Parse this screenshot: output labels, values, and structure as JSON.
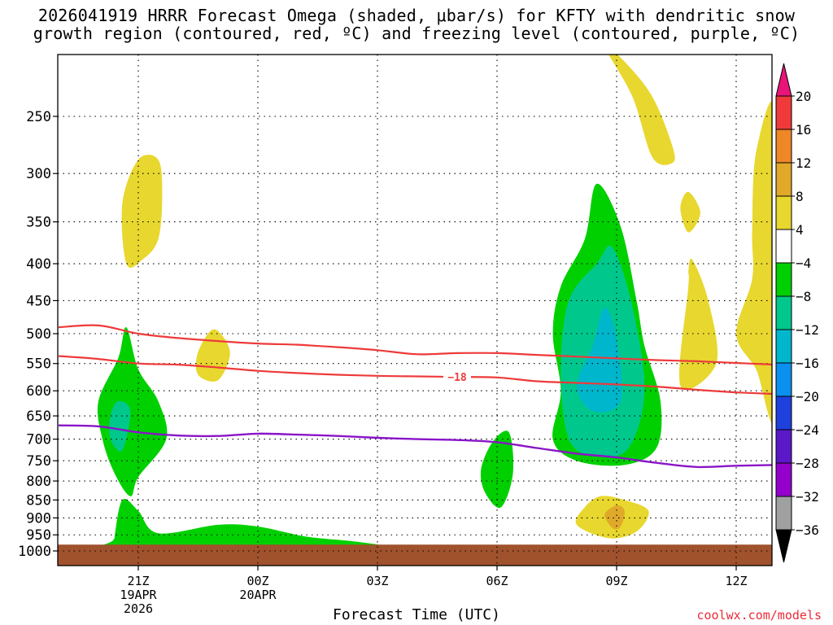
{
  "title": {
    "line1": "2026041919 HRRR Forecast Omega (shaded, μbar/s) for KFTY with dendritic snow",
    "line2": "growth region (contoured, red, ºC) and freezing level (contoured, purple, ºC)"
  },
  "source": "coolwx.com/models",
  "chart_data": {
    "type": "contour",
    "title": "2026041919 HRRR Forecast Omega (shaded, μbar/s) for KFTY with dendritic snow growth region (contoured, red, ºC) and freezing level (contoured, purple, ºC)",
    "xlabel": "Forecast Time (UTC)",
    "ylabel": "",
    "x_range_hours": [
      19,
      37
    ],
    "y_range_hpa": [
      1000,
      200
    ],
    "y_scale": "log",
    "grid": true,
    "x_ticks": [
      {
        "hour": 21,
        "label": "21Z",
        "sub1": "19APR",
        "sub2": "2026"
      },
      {
        "hour": 24,
        "label": "00Z",
        "sub1": "20APR",
        "sub2": ""
      },
      {
        "hour": 27,
        "label": "03Z",
        "sub1": "",
        "sub2": ""
      },
      {
        "hour": 30,
        "label": "06Z",
        "sub1": "",
        "sub2": ""
      },
      {
        "hour": 33,
        "label": "09Z",
        "sub1": "",
        "sub2": ""
      },
      {
        "hour": 36,
        "label": "12Z",
        "sub1": "",
        "sub2": ""
      }
    ],
    "y_ticks": [
      250,
      300,
      350,
      400,
      450,
      500,
      550,
      600,
      650,
      700,
      750,
      800,
      850,
      900,
      950,
      1000
    ],
    "colorbar": {
      "labels": [
        "20",
        "16",
        "12",
        "8",
        "4",
        "−4",
        "−8",
        "−12",
        "−16",
        "−20",
        "−24",
        "−28",
        "−32",
        "−36"
      ],
      "colors": [
        "#e8147a",
        "#f0393a",
        "#ef8727",
        "#e0a92a",
        "#e8d72e",
        "#ffffff",
        "#00d000",
        "#00c88c",
        "#00b6cc",
        "#0a90ee",
        "#1e40dd",
        "#5a18c8",
        "#9400cc",
        "#a0a0a0",
        "#000000"
      ]
    },
    "omega_regions": [
      {
        "band": "4 to 8",
        "color": "#e8d72e",
        "points": [
          [
            20.7,
            400
          ],
          [
            20.6,
            330
          ],
          [
            21.0,
            287
          ],
          [
            21.5,
            287
          ],
          [
            21.6,
            320
          ],
          [
            21.5,
            370
          ],
          [
            21.1,
            395
          ]
        ]
      },
      {
        "band": "4 to 8",
        "color": "#e8d72e",
        "points": [
          [
            22.5,
            570
          ],
          [
            22.5,
            530
          ],
          [
            22.9,
            493
          ],
          [
            23.3,
            530
          ],
          [
            23.0,
            580
          ]
        ]
      },
      {
        "band": "4 to 8",
        "color": "#e8d72e",
        "points": [
          [
            32.7,
            200
          ],
          [
            33.2,
            210
          ],
          [
            33.9,
            235
          ],
          [
            34.4,
            275
          ],
          [
            34.4,
            290
          ],
          [
            33.9,
            285
          ],
          [
            33.4,
            235
          ]
        ]
      },
      {
        "band": "4 to 8",
        "color": "#e8d72e",
        "points": [
          [
            34.6,
            335
          ],
          [
            34.8,
            318
          ],
          [
            35.1,
            340
          ],
          [
            34.8,
            362
          ]
        ]
      },
      {
        "band": "4 to 8",
        "color": "#e8d72e",
        "points": [
          [
            34.8,
            430
          ],
          [
            34.8,
            410
          ],
          [
            34.9,
            395
          ],
          [
            35.3,
            450
          ],
          [
            35.5,
            550
          ],
          [
            34.6,
            590
          ]
        ]
      },
      {
        "band": "4 to 8",
        "color": "#e8d72e",
        "points": [
          [
            36.0,
            500
          ],
          [
            36.4,
            420
          ],
          [
            36.4,
            360
          ],
          [
            36.5,
            280
          ],
          [
            37.0,
            250
          ],
          [
            37.0,
            640
          ],
          [
            36.5,
            560
          ]
        ]
      },
      {
        "band": "4 to 8",
        "color": "#e8d72e",
        "points": [
          [
            32.0,
            920
          ],
          [
            32.2,
            870
          ],
          [
            32.6,
            840
          ],
          [
            33.2,
            850
          ],
          [
            33.8,
            880
          ],
          [
            33.5,
            940
          ],
          [
            32.8,
            960
          ]
        ]
      },
      {
        "band": "8 to 12",
        "color": "#e0a92a",
        "points": [
          [
            32.7,
            890
          ],
          [
            33.0,
            865
          ],
          [
            33.2,
            880
          ],
          [
            33.1,
            925
          ],
          [
            32.9,
            930
          ]
        ]
      },
      {
        "band": "-4 to -8",
        "color": "#00d000",
        "points": [
          [
            20.0,
            620
          ],
          [
            20.5,
            540
          ],
          [
            20.7,
            490
          ],
          [
            21.0,
            560
          ],
          [
            21.5,
            620
          ],
          [
            21.7,
            700
          ],
          [
            21.0,
            790
          ],
          [
            20.8,
            840
          ],
          [
            20.4,
            780
          ],
          [
            20.1,
            700
          ]
        ]
      },
      {
        "band": "-4 to -8",
        "color": "#00d000",
        "points": [
          [
            20.4,
            960
          ],
          [
            20.6,
            850
          ],
          [
            21.0,
            880
          ],
          [
            21.5,
            945
          ],
          [
            23.0,
            920
          ],
          [
            24.0,
            925
          ],
          [
            25.2,
            955
          ],
          [
            26.4,
            970
          ],
          [
            27.1,
            985
          ],
          [
            25.5,
            990
          ],
          [
            20.4,
            990
          ]
        ]
      },
      {
        "band": "-4 to -8",
        "color": "#00d000",
        "points": [
          [
            29.6,
            770
          ],
          [
            29.9,
            705
          ],
          [
            30.3,
            685
          ],
          [
            30.4,
            780
          ],
          [
            30.1,
            870
          ],
          [
            29.7,
            830
          ]
        ]
      },
      {
        "band": "-4 to -8",
        "color": "#00d000",
        "points": [
          [
            31.4,
            500
          ],
          [
            31.6,
            430
          ],
          [
            32.2,
            370
          ],
          [
            32.5,
            310
          ],
          [
            33.1,
            355
          ],
          [
            33.5,
            450
          ],
          [
            33.7,
            520
          ],
          [
            34.1,
            620
          ],
          [
            34.0,
            720
          ],
          [
            33.2,
            760
          ],
          [
            32.0,
            750
          ],
          [
            31.4,
            700
          ],
          [
            31.6,
            600
          ]
        ]
      },
      {
        "band": "-8 to -12",
        "color": "#00c88c",
        "points": [
          [
            20.3,
            650
          ],
          [
            20.5,
            620
          ],
          [
            20.8,
            640
          ],
          [
            20.6,
            725
          ],
          [
            20.3,
            700
          ]
        ]
      },
      {
        "band": "-8 to -12",
        "color": "#00c88c",
        "points": [
          [
            31.6,
            560
          ],
          [
            31.8,
            450
          ],
          [
            32.5,
            400
          ],
          [
            32.9,
            380
          ],
          [
            33.4,
            460
          ],
          [
            33.7,
            600
          ],
          [
            33.3,
            720
          ],
          [
            32.5,
            740
          ],
          [
            31.8,
            700
          ]
        ]
      },
      {
        "band": "-12 to -16",
        "color": "#00b6cc",
        "points": [
          [
            32.4,
            520
          ],
          [
            32.7,
            460
          ],
          [
            33.0,
            510
          ],
          [
            33.1,
            620
          ],
          [
            32.4,
            640
          ],
          [
            32.0,
            590
          ]
        ]
      }
    ],
    "red_contours": [
      {
        "label": "",
        "points": [
          [
            19,
            490
          ],
          [
            20,
            487
          ],
          [
            21,
            500
          ],
          [
            22,
            507
          ],
          [
            23,
            512
          ],
          [
            24,
            516
          ],
          [
            25,
            518
          ],
          [
            26,
            522
          ],
          [
            27,
            527
          ],
          [
            28,
            534
          ],
          [
            29,
            532
          ],
          [
            30,
            532
          ],
          [
            31,
            535
          ],
          [
            32,
            538
          ],
          [
            33,
            541
          ],
          [
            34,
            544
          ],
          [
            35,
            546
          ],
          [
            36,
            549
          ],
          [
            37,
            552
          ]
        ]
      },
      {
        "label": "−18",
        "label_hour": 29.0,
        "points": [
          [
            19,
            537
          ],
          [
            20,
            542
          ],
          [
            21,
            550
          ],
          [
            22,
            552
          ],
          [
            23,
            557
          ],
          [
            24,
            563
          ],
          [
            25,
            567
          ],
          [
            26,
            570
          ],
          [
            27,
            572
          ],
          [
            28,
            573
          ],
          [
            29,
            574
          ],
          [
            30,
            575
          ],
          [
            31,
            582
          ],
          [
            32,
            585
          ],
          [
            33,
            588
          ],
          [
            34,
            592
          ],
          [
            35,
            598
          ],
          [
            36,
            603
          ],
          [
            37,
            606
          ]
        ]
      }
    ],
    "purple_contours": [
      {
        "points": [
          [
            19,
            670
          ],
          [
            20,
            672
          ],
          [
            21,
            685
          ],
          [
            22,
            692
          ],
          [
            23,
            693
          ],
          [
            24,
            688
          ],
          [
            25,
            690
          ],
          [
            26,
            693
          ],
          [
            27,
            697
          ],
          [
            28,
            700
          ],
          [
            29,
            702
          ],
          [
            30,
            707
          ],
          [
            31,
            720
          ],
          [
            32,
            733
          ],
          [
            33,
            742
          ],
          [
            34,
            755
          ],
          [
            35,
            765
          ],
          [
            36,
            762
          ],
          [
            37,
            760
          ]
        ]
      }
    ],
    "terrain": {
      "color": "#a0522d",
      "top_hpa": 980
    }
  }
}
